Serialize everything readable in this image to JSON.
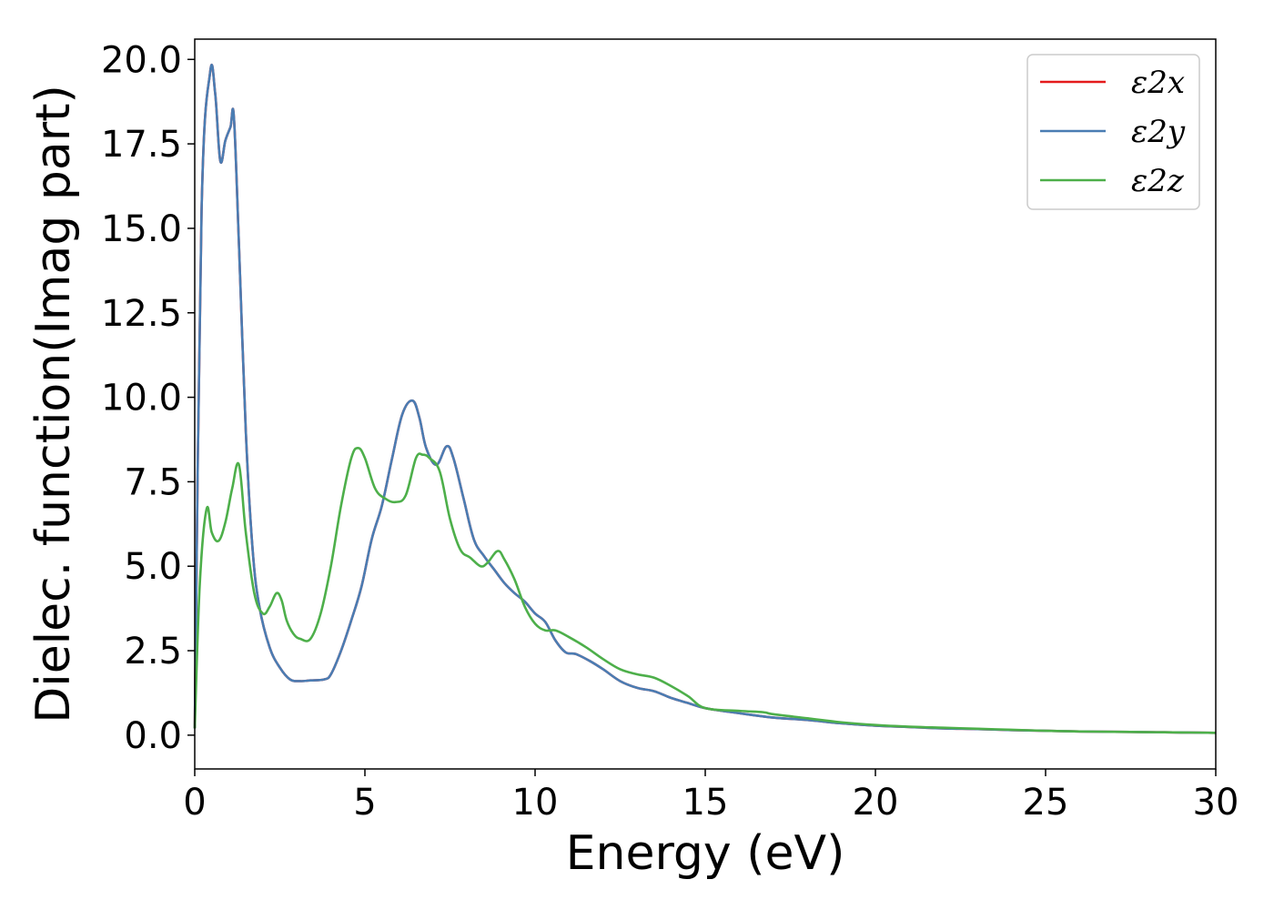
{
  "chart_data": {
    "type": "line",
    "xlabel": "Energy (eV)",
    "ylabel": "Dielec. function(Imag part)",
    "xlim": [
      0,
      30
    ],
    "ylim": [
      -1.0,
      20.6
    ],
    "x_ticks": [
      0,
      5,
      10,
      15,
      20,
      25,
      30
    ],
    "y_ticks": [
      0.0,
      2.5,
      5.0,
      7.5,
      10.0,
      12.5,
      15.0,
      17.5,
      20.0
    ],
    "grid": false,
    "legend_position": "top-right",
    "series": [
      {
        "name": "ε2x",
        "color": "#e41a1c",
        "x": [
          0,
          0.2,
          0.45,
          0.6,
          0.75,
          0.9,
          1.05,
          1.15,
          1.3,
          1.5,
          1.7,
          1.9,
          2.2,
          2.5,
          2.8,
          3.1,
          3.4,
          3.8,
          4.0,
          4.3,
          4.6,
          4.9,
          5.2,
          5.5,
          5.8,
          6.1,
          6.4,
          6.6,
          6.8,
          7.1,
          7.4,
          7.6,
          7.9,
          8.2,
          8.5,
          8.8,
          9.1,
          9.4,
          9.7,
          10.0,
          10.3,
          10.6,
          10.9,
          11.2,
          11.6,
          12.0,
          12.5,
          13.0,
          13.5,
          14.0,
          14.5,
          15.0,
          16.0,
          17.0,
          18.0,
          19.0,
          20.0,
          21.0,
          22.0,
          23.0,
          24.0,
          25.0,
          26.0,
          27.0,
          28.0,
          29.0,
          30.0
        ],
        "values": [
          0.2,
          15.5,
          19.6,
          19.0,
          17.0,
          17.6,
          18.0,
          18.3,
          14.5,
          9.0,
          5.5,
          3.8,
          2.6,
          2.0,
          1.65,
          1.6,
          1.62,
          1.65,
          1.8,
          2.5,
          3.4,
          4.4,
          5.8,
          6.8,
          8.2,
          9.5,
          9.9,
          9.4,
          8.5,
          8.0,
          8.55,
          8.2,
          7.0,
          5.8,
          5.3,
          4.9,
          4.5,
          4.2,
          3.95,
          3.6,
          3.35,
          2.8,
          2.45,
          2.4,
          2.2,
          1.95,
          1.6,
          1.4,
          1.3,
          1.1,
          0.95,
          0.8,
          0.65,
          0.52,
          0.45,
          0.35,
          0.28,
          0.24,
          0.2,
          0.18,
          0.15,
          0.13,
          0.11,
          0.1,
          0.09,
          0.08,
          0.07
        ]
      },
      {
        "name": "ε2y",
        "color": "#4a7db3",
        "x": [
          0,
          0.2,
          0.45,
          0.6,
          0.75,
          0.9,
          1.05,
          1.15,
          1.3,
          1.5,
          1.7,
          1.9,
          2.2,
          2.5,
          2.8,
          3.1,
          3.4,
          3.8,
          4.0,
          4.3,
          4.6,
          4.9,
          5.2,
          5.5,
          5.8,
          6.1,
          6.4,
          6.6,
          6.8,
          7.1,
          7.4,
          7.6,
          7.9,
          8.2,
          8.5,
          8.8,
          9.1,
          9.4,
          9.7,
          10.0,
          10.3,
          10.6,
          10.9,
          11.2,
          11.6,
          12.0,
          12.5,
          13.0,
          13.5,
          14.0,
          14.5,
          15.0,
          16.0,
          17.0,
          18.0,
          19.0,
          20.0,
          21.0,
          22.0,
          23.0,
          24.0,
          25.0,
          26.0,
          27.0,
          28.0,
          29.0,
          30.0
        ],
        "values": [
          0.2,
          15.5,
          19.6,
          19.0,
          17.0,
          17.6,
          18.0,
          18.3,
          14.5,
          9.0,
          5.5,
          3.8,
          2.6,
          2.0,
          1.65,
          1.6,
          1.62,
          1.65,
          1.8,
          2.5,
          3.4,
          4.4,
          5.8,
          6.8,
          8.2,
          9.5,
          9.9,
          9.4,
          8.5,
          8.0,
          8.55,
          8.2,
          7.0,
          5.8,
          5.3,
          4.9,
          4.5,
          4.2,
          3.95,
          3.6,
          3.35,
          2.8,
          2.45,
          2.4,
          2.2,
          1.95,
          1.6,
          1.4,
          1.3,
          1.1,
          0.95,
          0.8,
          0.65,
          0.52,
          0.45,
          0.35,
          0.28,
          0.24,
          0.2,
          0.18,
          0.15,
          0.13,
          0.11,
          0.1,
          0.09,
          0.08,
          0.07
        ]
      },
      {
        "name": "ε2z",
        "color": "#4daf4a",
        "x": [
          0,
          0.15,
          0.35,
          0.5,
          0.7,
          0.9,
          1.1,
          1.3,
          1.5,
          1.75,
          2.0,
          2.2,
          2.4,
          2.55,
          2.7,
          2.9,
          3.1,
          3.4,
          3.7,
          4.0,
          4.3,
          4.6,
          4.8,
          5.0,
          5.3,
          5.6,
          5.9,
          6.2,
          6.5,
          6.7,
          6.9,
          7.2,
          7.5,
          7.8,
          8.1,
          8.4,
          8.6,
          8.9,
          9.1,
          9.4,
          9.7,
          10.0,
          10.3,
          10.6,
          11.0,
          11.5,
          12.0,
          12.5,
          13.0,
          13.5,
          14.0,
          14.5,
          15.0,
          16.0,
          16.7,
          17.0,
          18.0,
          19.0,
          20.0,
          21.0,
          22.0,
          23.0,
          24.0,
          25.0,
          26.0,
          27.0,
          28.0,
          29.0,
          30.0
        ],
        "values": [
          0.2,
          4.5,
          6.7,
          6.0,
          5.75,
          6.3,
          7.3,
          8.0,
          6.0,
          4.2,
          3.6,
          3.8,
          4.2,
          4.0,
          3.4,
          3.0,
          2.85,
          2.85,
          3.6,
          5.0,
          6.8,
          8.2,
          8.5,
          8.2,
          7.3,
          7.0,
          6.9,
          7.1,
          8.2,
          8.3,
          8.2,
          7.8,
          6.4,
          5.5,
          5.25,
          5.0,
          5.1,
          5.45,
          5.2,
          4.6,
          3.8,
          3.3,
          3.1,
          3.1,
          2.9,
          2.6,
          2.25,
          1.95,
          1.8,
          1.7,
          1.45,
          1.15,
          0.8,
          0.72,
          0.68,
          0.62,
          0.5,
          0.38,
          0.3,
          0.25,
          0.22,
          0.19,
          0.16,
          0.13,
          0.11,
          0.1,
          0.09,
          0.08,
          0.07
        ]
      }
    ]
  }
}
